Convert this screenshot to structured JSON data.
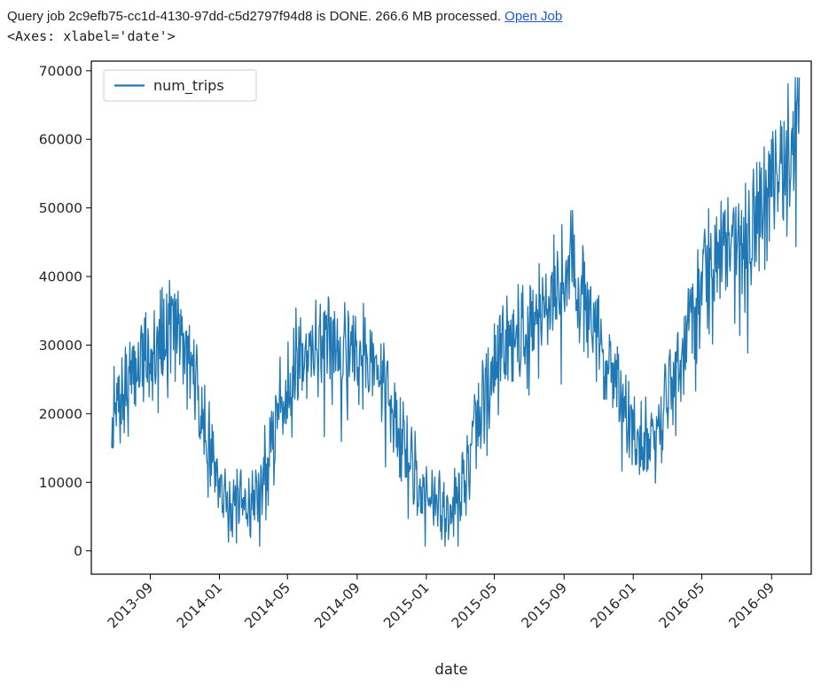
{
  "header": {
    "status_text": "Query job 2c9efb75-cc1d-4130-97dd-c5d2797f94d8 is DONE. 266.6 MB processed. ",
    "link_label": "Open Job",
    "repr_text": "<Axes: xlabel='date'>"
  },
  "colors": {
    "line": "#1f77b4",
    "link": "#1a58cc",
    "axis": "#000000",
    "text": "#262626",
    "legend_border": "#cccccc",
    "background": "#ffffff"
  },
  "chart_data": {
    "type": "line",
    "title": "",
    "xlabel": "date",
    "ylabel": "",
    "grid": false,
    "legend": {
      "position": "upper-left",
      "entries": [
        "num_trips"
      ]
    },
    "series_name": "num_trips",
    "x_tick_labels": [
      "2013-09",
      "2014-01",
      "2014-05",
      "2014-09",
      "2015-01",
      "2015-05",
      "2015-09",
      "2016-01",
      "2016-05",
      "2016-09"
    ],
    "y_ticks": [
      0,
      10000,
      20000,
      30000,
      40000,
      50000,
      60000,
      70000
    ],
    "x_range": [
      "2013-06-25",
      "2016-10-20"
    ],
    "xlim": [
      "2013-05-20",
      "2016-11-10"
    ],
    "ylim": [
      -3400,
      71400
    ],
    "y_data_range": [
      1000,
      68000
    ],
    "monthly_anchor_values": [
      [
        "2013-06-25",
        19500
      ],
      [
        "2013-07-15",
        22000
      ],
      [
        "2013-08-15",
        28000
      ],
      [
        "2013-09-15",
        32000
      ],
      [
        "2013-10-15",
        33500
      ],
      [
        "2013-11-15",
        26000
      ],
      [
        "2013-12-15",
        15000
      ],
      [
        "2014-01-15",
        7500
      ],
      [
        "2014-02-15",
        6000
      ],
      [
        "2014-03-15",
        9500
      ],
      [
        "2014-04-15",
        21000
      ],
      [
        "2014-05-15",
        28000
      ],
      [
        "2014-06-15",
        30000
      ],
      [
        "2014-07-15",
        30500
      ],
      [
        "2014-08-15",
        31000
      ],
      [
        "2014-09-15",
        29000
      ],
      [
        "2014-10-15",
        25000
      ],
      [
        "2014-11-15",
        17000
      ],
      [
        "2014-12-15",
        11000
      ],
      [
        "2015-01-15",
        6500
      ],
      [
        "2015-02-15",
        6000
      ],
      [
        "2015-03-15",
        12000
      ],
      [
        "2015-04-15",
        24000
      ],
      [
        "2015-05-15",
        30000
      ],
      [
        "2015-06-15",
        32000
      ],
      [
        "2015-07-15",
        34000
      ],
      [
        "2015-08-15",
        38000
      ],
      [
        "2015-09-15",
        44000
      ],
      [
        "2015-10-15",
        35000
      ],
      [
        "2015-11-15",
        27000
      ],
      [
        "2015-12-15",
        21000
      ],
      [
        "2016-01-15",
        16000
      ],
      [
        "2016-02-15",
        18000
      ],
      [
        "2016-03-15",
        26000
      ],
      [
        "2016-04-15",
        34000
      ],
      [
        "2016-05-15",
        42000
      ],
      [
        "2016-06-15",
        45000
      ],
      [
        "2016-07-15",
        45500
      ],
      [
        "2016-08-15",
        50000
      ],
      [
        "2016-09-15",
        55000
      ],
      [
        "2016-10-20",
        64000
      ]
    ],
    "noise": {
      "seed": 7,
      "weekly_amplitude": 1800,
      "random_amplitude_base": 3500,
      "random_amplitude_scale": 0.09,
      "dip_probability": 0.06
    }
  }
}
